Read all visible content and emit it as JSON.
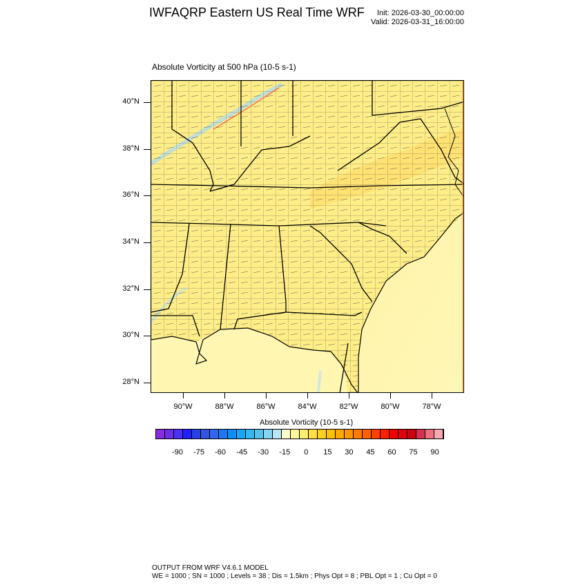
{
  "header": {
    "title": "IWFAQRP Eastern US Real Time WRF",
    "init": "Init: 2026-03-30_00:00:00",
    "valid": "Valid: 2026-03-31_16:00:00"
  },
  "field_title": "Absolute Vorticity at 500 hPa   (10-5 s-1)",
  "map": {
    "lat_labels": [
      "40°N",
      "38°N",
      "36°N",
      "34°N",
      "32°N",
      "30°N",
      "28°N"
    ],
    "lon_labels": [
      "90°W",
      "88°W",
      "86°W",
      "84°W",
      "82°W",
      "80°W",
      "78°W"
    ],
    "background_color": "#fff2a0",
    "ocean_color": "#fff6b0"
  },
  "colorbar": {
    "title": "Absolute Vorticity  (10-5 s-1)",
    "labels": [
      "-90",
      "-75",
      "-60",
      "-45",
      "-30",
      "-15",
      "0",
      "15",
      "30",
      "45",
      "60",
      "75",
      "90"
    ],
    "colors": [
      "#8a2be2",
      "#6a2fe6",
      "#4b32f0",
      "#1f1fff",
      "#2840e8",
      "#3355dd",
      "#3366ee",
      "#1e78f0",
      "#0a90f5",
      "#1aa6f7",
      "#35b6f0",
      "#55c2ec",
      "#85d4f0",
      "#b8e6f5",
      "#fffbcc",
      "#fff59a",
      "#ffee70",
      "#ffe040",
      "#ffd020",
      "#ffc000",
      "#ffaa00",
      "#ff9500",
      "#ff7b00",
      "#ff6000",
      "#ff4000",
      "#ff2000",
      "#f00000",
      "#e00010",
      "#cc0010",
      "#d83050",
      "#ee7080",
      "#f8a8b0"
    ]
  },
  "footer": {
    "line1": "OUTPUT FROM WRF V4.6.1 MODEL",
    "line2": "WE = 1000 ; SN = 1000 ; Levels = 38 ; Dis = 1.5km ; Phys Opt = 8 ; PBL Opt = 1 ; Cu Opt = 0"
  }
}
